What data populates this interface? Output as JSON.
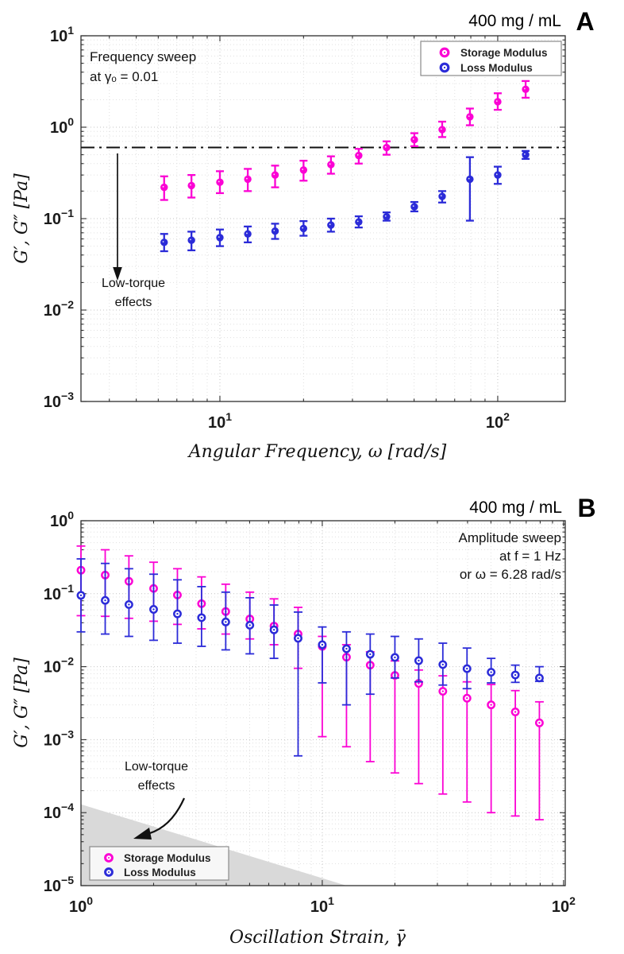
{
  "chart_data": [
    {
      "type": "scatter",
      "panel_label": "A",
      "title": "400 mg / mL",
      "xlabel": "Angular Frequency, ω [rad/s]",
      "ylabel": "G′, G″ [Pa]",
      "xscale": "log",
      "yscale": "log",
      "xlim": [
        3.16,
        175
      ],
      "ylim": [
        0.001,
        10
      ],
      "xtick_exponents": [
        1,
        2
      ],
      "ytick_exponents": [
        1,
        0,
        -1,
        -2,
        -3
      ],
      "grid": "dotted major and minor",
      "annotation": {
        "line1": "Frequency sweep",
        "line2": "at γₒ =  0.01"
      },
      "low_torque_line": {
        "value": 0.6,
        "style": "dash-dot",
        "label_line1": "Low-torque",
        "label_line2": "effects"
      },
      "legend": {
        "position": "top-right"
      },
      "series": [
        {
          "name": "Storage Modulus",
          "color": "#fb02d4",
          "marker": "filled-circle",
          "x": [
            6.3,
            7.9,
            10,
            12.6,
            15.8,
            20,
            25.1,
            31.6,
            39.8,
            50.1,
            63.1,
            79.4,
            100,
            126
          ],
          "y": [
            0.22,
            0.23,
            0.25,
            0.27,
            0.3,
            0.34,
            0.39,
            0.49,
            0.6,
            0.73,
            0.94,
            1.3,
            1.9,
            2.6
          ],
          "err_lo": [
            0.16,
            0.17,
            0.19,
            0.2,
            0.22,
            0.26,
            0.31,
            0.4,
            0.5,
            0.62,
            0.78,
            1.05,
            1.55,
            2.1
          ],
          "err_hi": [
            0.29,
            0.3,
            0.33,
            0.35,
            0.38,
            0.43,
            0.48,
            0.58,
            0.7,
            0.86,
            1.15,
            1.6,
            2.35,
            3.2
          ]
        },
        {
          "name": "Loss Modulus",
          "color": "#2b2bd8",
          "marker": "filled-circle",
          "x": [
            6.3,
            7.9,
            10,
            12.6,
            15.8,
            20,
            25.1,
            31.6,
            39.8,
            50.1,
            63.1,
            79.4,
            100,
            126
          ],
          "y": [
            0.055,
            0.058,
            0.062,
            0.068,
            0.073,
            0.078,
            0.085,
            0.092,
            0.105,
            0.135,
            0.175,
            0.27,
            0.3,
            0.5
          ],
          "err_lo": [
            0.044,
            0.045,
            0.05,
            0.055,
            0.06,
            0.065,
            0.072,
            0.08,
            0.095,
            0.12,
            0.15,
            0.095,
            0.24,
            0.45
          ],
          "err_hi": [
            0.068,
            0.072,
            0.076,
            0.082,
            0.088,
            0.094,
            0.1,
            0.106,
            0.117,
            0.152,
            0.2,
            0.47,
            0.37,
            0.55
          ]
        }
      ]
    },
    {
      "type": "scatter",
      "panel_label": "B",
      "title": "400 mg / mL",
      "xlabel": "Oscillation Strain, γ̄",
      "ylabel": "G′, G″ [Pa]",
      "xscale": "log",
      "yscale": "log",
      "xlim": [
        1,
        101.6
      ],
      "ylim": [
        1e-05,
        1
      ],
      "xtick_exponents": [
        0,
        1,
        2
      ],
      "ytick_exponents": [
        0,
        -1,
        -2,
        -3,
        -4,
        -5
      ],
      "grid": "dotted major and minor",
      "annotation": {
        "line1": "Amplitude sweep",
        "line2": "at f = 1 Hz",
        "line3": "or ω =  6.28 rad/s"
      },
      "low_torque_region": {
        "label_line1": "Low-torque",
        "label_line2": "effects",
        "color": "#d9d9d9",
        "points_xy": [
          [
            1,
            0.00013
          ],
          [
            12.6,
            1e-05
          ],
          [
            1,
            1e-05
          ]
        ]
      },
      "legend": {
        "position": "bottom-left"
      },
      "series": [
        {
          "name": "Storage Modulus",
          "color": "#fb02d4",
          "marker": "open-circle",
          "x": [
            1.0,
            1.26,
            1.58,
            2.0,
            2.51,
            3.16,
            3.98,
            5.01,
            6.31,
            7.94,
            10,
            12.6,
            15.8,
            20,
            25.1,
            31.6,
            39.8,
            50.1,
            63.1,
            79.4
          ],
          "y": [
            0.21,
            0.18,
            0.148,
            0.118,
            0.096,
            0.073,
            0.057,
            0.045,
            0.036,
            0.028,
            0.019,
            0.0135,
            0.0105,
            0.0076,
            0.0059,
            0.0046,
            0.0037,
            0.003,
            0.0024,
            0.0017
          ],
          "err_lo": [
            0.05,
            0.049,
            0.046,
            0.042,
            0.038,
            0.033,
            0.028,
            0.024,
            0.02,
            0.0095,
            0.0011,
            0.0008,
            0.0005,
            0.00035,
            0.00025,
            0.00018,
            0.00014,
            0.0001,
            9e-05,
            8e-05
          ],
          "err_hi": [
            0.45,
            0.4,
            0.33,
            0.27,
            0.22,
            0.17,
            0.135,
            0.105,
            0.085,
            0.065,
            0.026,
            0.02,
            0.016,
            0.012,
            0.009,
            0.0075,
            0.0062,
            0.0057,
            0.0047,
            0.0033
          ]
        },
        {
          "name": "Loss Modulus",
          "color": "#2b2bd8",
          "marker": "open-circle",
          "x": [
            1.0,
            1.26,
            1.58,
            2.0,
            2.51,
            3.16,
            3.98,
            5.01,
            6.31,
            7.94,
            10,
            12.6,
            15.8,
            20,
            25.1,
            31.6,
            39.8,
            50.1,
            63.1,
            79.4
          ],
          "y": [
            0.095,
            0.081,
            0.071,
            0.061,
            0.053,
            0.047,
            0.041,
            0.037,
            0.032,
            0.0245,
            0.02,
            0.0176,
            0.0148,
            0.0134,
            0.0121,
            0.0107,
            0.0094,
            0.0084,
            0.0077,
            0.007
          ],
          "err_lo": [
            0.03,
            0.028,
            0.026,
            0.023,
            0.021,
            0.019,
            0.017,
            0.015,
            0.013,
            0.0006,
            0.006,
            0.003,
            0.0042,
            0.007,
            0.0062,
            0.0056,
            0.005,
            0.006,
            0.0061,
            0.0063
          ],
          "err_hi": [
            0.3,
            0.26,
            0.22,
            0.185,
            0.155,
            0.125,
            0.105,
            0.088,
            0.07,
            0.056,
            0.035,
            0.03,
            0.028,
            0.026,
            0.024,
            0.021,
            0.018,
            0.013,
            0.0105,
            0.01
          ]
        }
      ]
    }
  ]
}
